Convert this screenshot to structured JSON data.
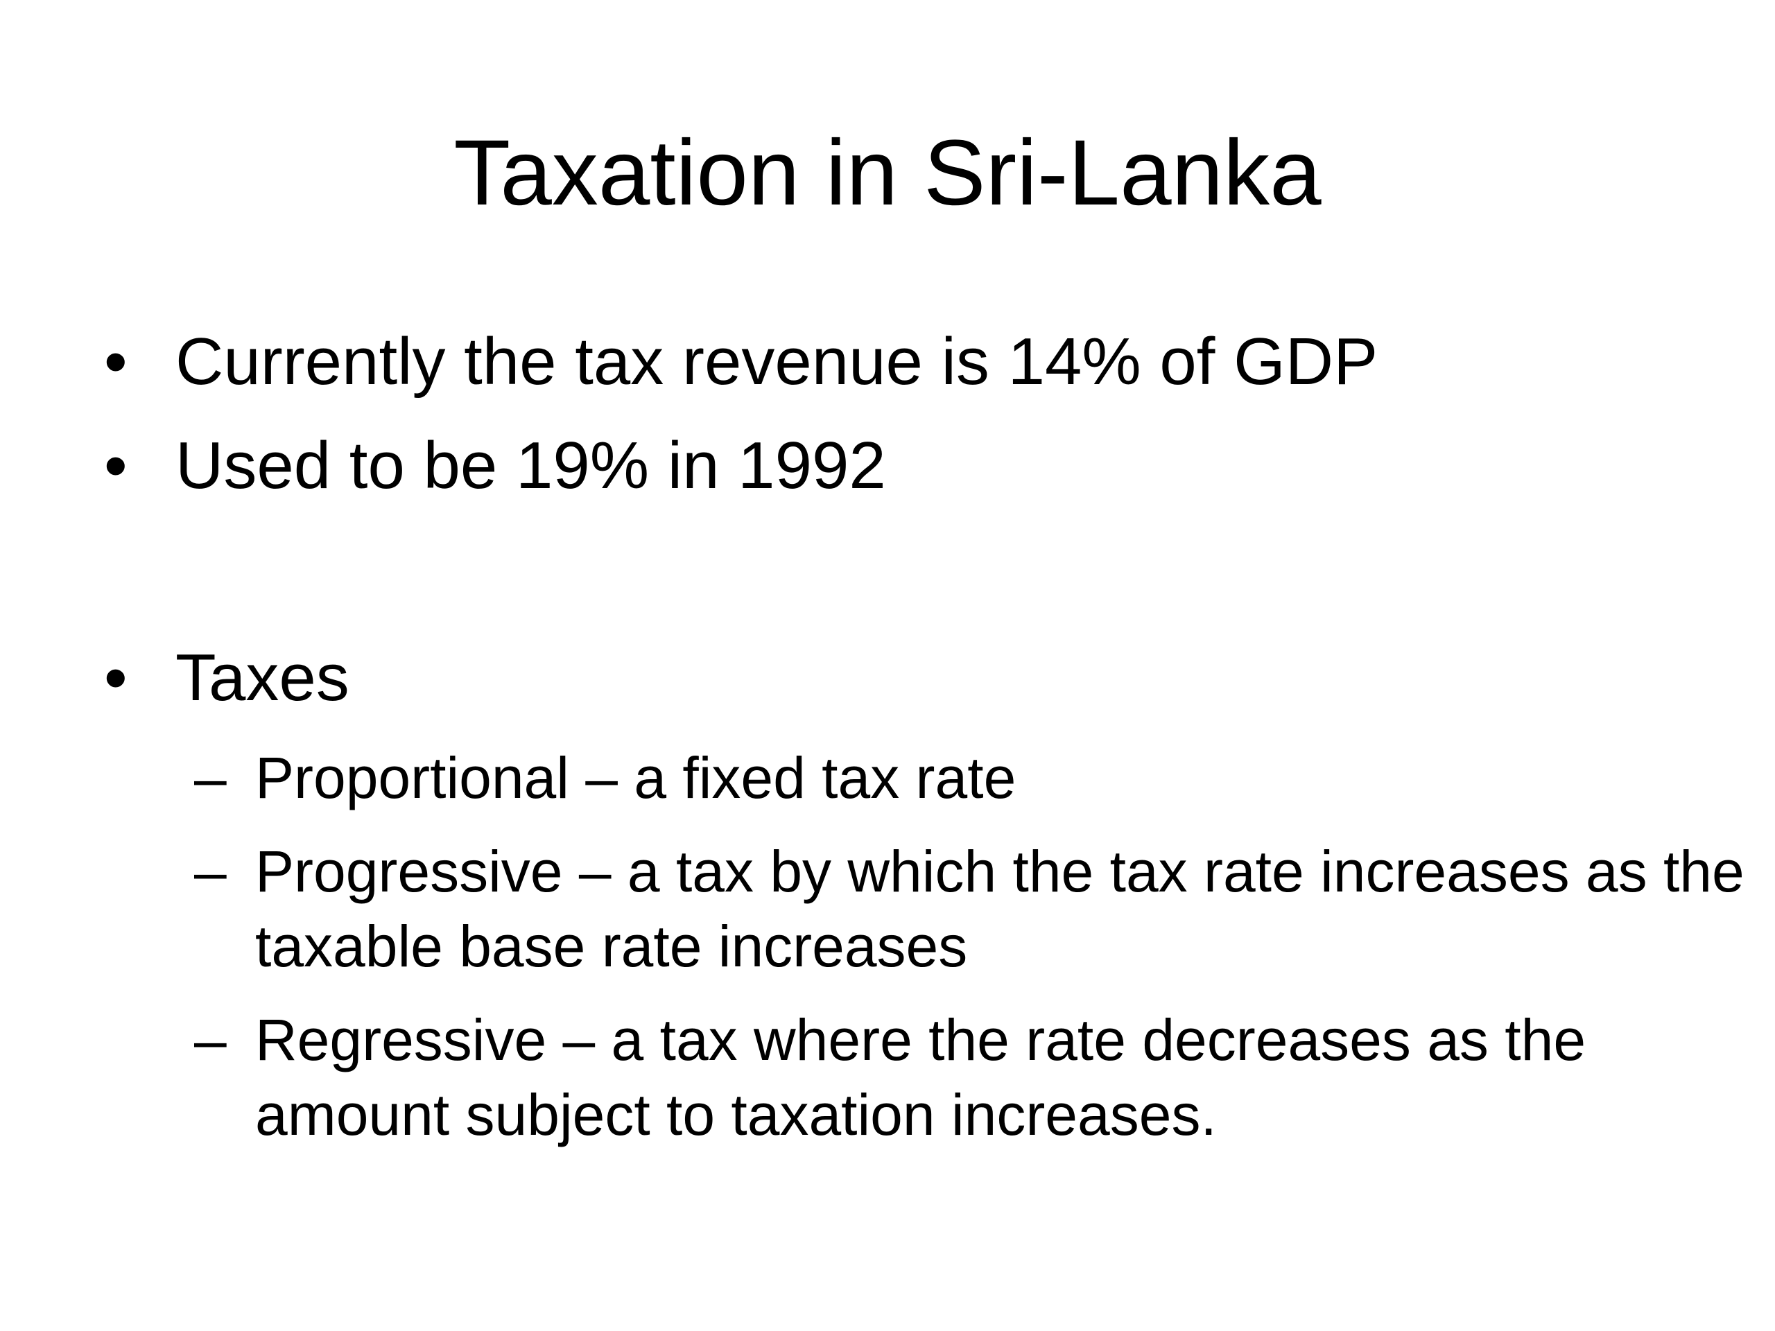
{
  "slide": {
    "title": "Taxation in Sri-Lanka",
    "bullets": [
      {
        "marker": "•",
        "text": "Currently the tax revenue is 14% of GDP"
      },
      {
        "marker": "•",
        "text": "Used to be 19% in 1992"
      },
      {
        "marker": "•",
        "text": "Taxes"
      }
    ],
    "sub_bullets": [
      {
        "marker": "–",
        "text": "Proportional – a fixed tax rate"
      },
      {
        "marker": "–",
        "text": "Progressive – a tax by which the tax rate increases as the taxable base rate increases"
      },
      {
        "marker": "–",
        "text": "Regressive – a tax where the rate decreases as the amount subject to taxation increases."
      }
    ]
  }
}
